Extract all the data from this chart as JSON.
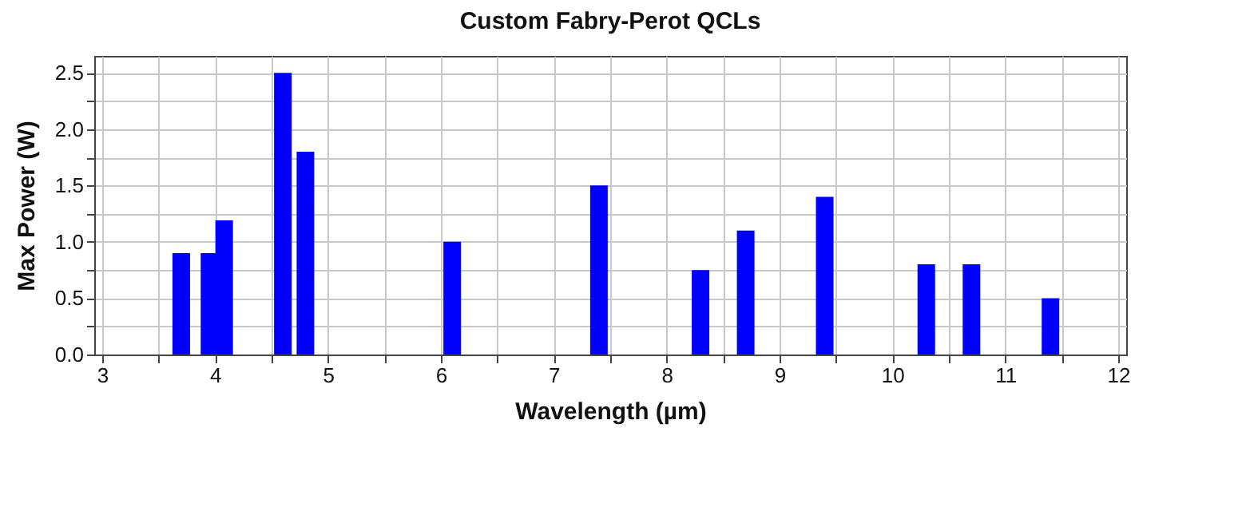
{
  "chart_data": {
    "type": "bar",
    "title": "Custom Fabry-Perot QCLs",
    "xlabel": "Wavelength (µm)",
    "ylabel": "Max Power (W)",
    "x": [
      3.7,
      3.95,
      4.08,
      4.6,
      4.8,
      6.1,
      7.4,
      8.3,
      8.7,
      9.4,
      10.3,
      10.7,
      11.4
    ],
    "values": [
      0.9,
      0.9,
      1.19,
      2.5,
      1.8,
      1.0,
      1.5,
      0.75,
      1.1,
      1.4,
      0.8,
      0.8,
      0.5
    ],
    "color": "#0000ff",
    "xlim": [
      3,
      12
    ],
    "xticks": [
      3,
      {
        "value": 3.5,
        "label": null
      },
      4,
      {
        "value": 4.5,
        "label": null
      },
      5,
      {
        "value": 5.5,
        "label": null
      },
      6,
      {
        "value": 6.5,
        "label": null
      },
      7,
      {
        "value": 7.5,
        "label": null
      },
      8,
      {
        "value": 8.5,
        "label": null
      },
      9,
      {
        "value": 9.5,
        "label": null
      },
      10,
      {
        "value": 10.5,
        "label": null
      },
      11,
      {
        "value": 11.5,
        "label": null
      },
      12
    ],
    "ylim": [
      0,
      2.65
    ],
    "yticks": [
      {
        "value": 0,
        "label": "0.0"
      },
      {
        "value": 0.25,
        "label": null
      },
      0.5,
      {
        "value": 0.75,
        "label": null
      },
      {
        "value": 1,
        "label": "1.0"
      },
      {
        "value": 1.25,
        "label": null
      },
      1.5,
      {
        "value": 1.75,
        "label": null
      },
      {
        "value": 2,
        "label": "2.0"
      },
      {
        "value": 2.25,
        "label": null
      },
      2.5
    ],
    "grid": true
  }
}
